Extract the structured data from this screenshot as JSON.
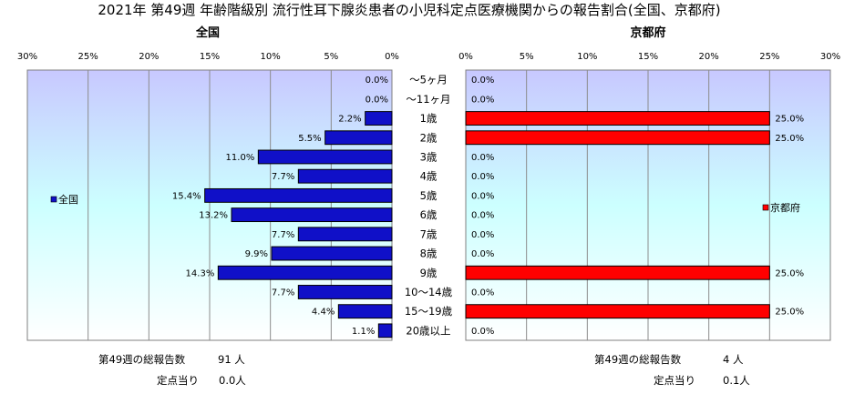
{
  "chart_data": {
    "type": "bar",
    "orientation": "horizontal",
    "title": "2021年 第49週 年齢階級別 流行性耳下腺炎患者の小児科定点医療機関からの報告割合(全国、京都府)",
    "categories": [
      "～5ヶ月",
      "～11ヶ月",
      "1歳",
      "2歳",
      "3歳",
      "4歳",
      "5歳",
      "6歳",
      "7歳",
      "8歳",
      "9歳",
      "10～14歳",
      "15～19歳",
      "20歳以上"
    ],
    "series": [
      {
        "name": "全国",
        "panel_title": "全国",
        "color": "#1010c8",
        "values": [
          0.0,
          0.0,
          2.2,
          5.5,
          11.0,
          7.7,
          15.4,
          13.2,
          7.7,
          9.9,
          14.3,
          7.7,
          4.4,
          1.1
        ],
        "labels": [
          "0.0%",
          "0.0%",
          "2.2%",
          "5.5%",
          "11.0%",
          "7.7%",
          "15.4%",
          "13.2%",
          "7.7%",
          "9.9%",
          "14.3%",
          "7.7%",
          "4.4%",
          "1.1%"
        ]
      },
      {
        "name": "京都府",
        "panel_title": "京都府",
        "color": "#ff0000",
        "values": [
          0.0,
          0.0,
          25.0,
          25.0,
          0.0,
          0.0,
          0.0,
          0.0,
          0.0,
          0.0,
          25.0,
          0.0,
          25.0,
          0.0
        ],
        "labels": [
          "0.0%",
          "0.0%",
          "25.0%",
          "25.0%",
          "0.0%",
          "0.0%",
          "0.0%",
          "0.0%",
          "0.0%",
          "0.0%",
          "25.0%",
          "0.0%",
          "25.0%",
          "0.0%"
        ]
      }
    ],
    "xlim": [
      0,
      30
    ],
    "ticks": [
      0,
      5,
      10,
      15,
      20,
      25,
      30
    ],
    "tick_labels": [
      "0%",
      "5%",
      "10%",
      "15%",
      "20%",
      "25%",
      "30%"
    ],
    "grid": true,
    "stats": {
      "national": {
        "total_label": "第49週の総報告数",
        "total_value": "91 人",
        "per_label": "定点当り",
        "per_value": "0.0人"
      },
      "kyoto": {
        "total_label": "第49週の総報告数",
        "total_value": "4 人",
        "per_label": "定点当り",
        "per_value": "0.1人"
      }
    }
  }
}
